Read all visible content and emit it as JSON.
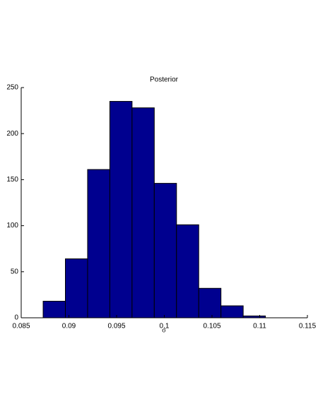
{
  "chart_data": {
    "type": "histogram",
    "title": "Posterior",
    "x_label": "σ",
    "bins": [
      0.0873,
      0.08963,
      0.09196,
      0.09429,
      0.09662,
      0.09895,
      0.10128,
      0.10361,
      0.10594,
      0.10827,
      0.1106
    ],
    "values": [
      18,
      64,
      161,
      235,
      228,
      146,
      101,
      32,
      13,
      2
    ],
    "color": "#00008f",
    "xlim": [
      0.085,
      0.115
    ],
    "xticks": [
      0.085,
      0.09,
      0.095,
      0.1,
      0.105,
      0.11,
      0.115
    ],
    "ylim": [
      0,
      250
    ],
    "yticks": [
      0,
      50,
      100,
      150,
      200,
      250
    ],
    "grid": false
  }
}
